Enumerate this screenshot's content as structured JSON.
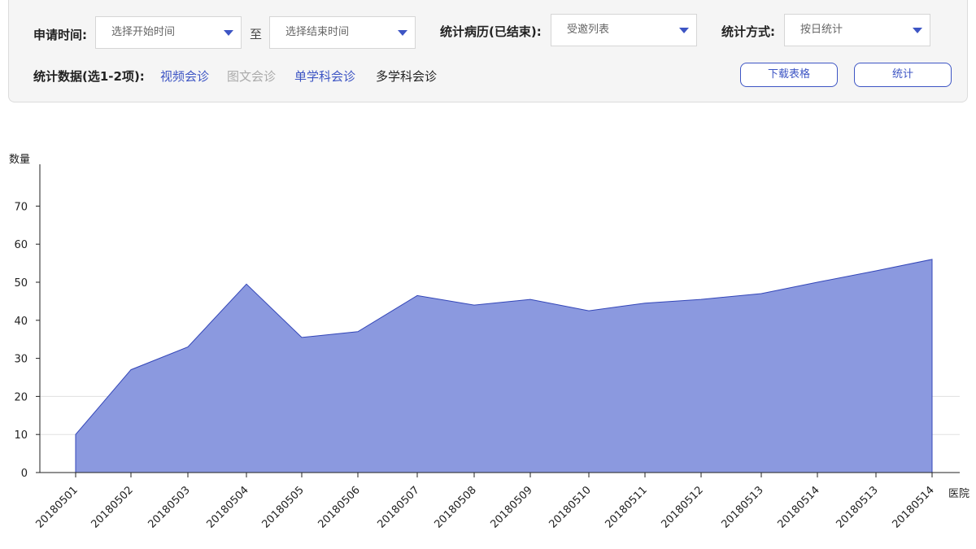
{
  "filters": {
    "apply_time_label": "申请时间:",
    "start_placeholder": "选择开始时间",
    "to_label": "至",
    "end_placeholder": "选择结束时间",
    "records_label": "统计病历(已结束):",
    "records_value": "受邀列表",
    "method_label": "统计方式:",
    "method_value": "按日统计",
    "data_label": "统计数据(选1-2项):",
    "options": [
      {
        "label": "视频会诊",
        "state": "selected"
      },
      {
        "label": "图文会诊",
        "state": "disabled"
      },
      {
        "label": "单学科会诊",
        "state": "selected"
      },
      {
        "label": "多学科会诊",
        "state": "normal"
      }
    ],
    "download_label": "下载表格",
    "stat_label": "统计"
  },
  "colors": {
    "accent": "#3d55c4",
    "area_fill": "#8b99df",
    "area_stroke": "#3346b8",
    "disabled_text": "#aaaaaa"
  },
  "chart_data": {
    "type": "area",
    "ylabel": "数量",
    "xlabel": "医院",
    "ylim": [
      0,
      80
    ],
    "yticks": [
      0,
      10,
      20,
      30,
      40,
      50,
      60,
      70
    ],
    "grid": "horizontal lines at 10 and 20",
    "categories": [
      "20180501",
      "20180502",
      "20180503",
      "20180504",
      "20180505",
      "20180506",
      "20180507",
      "20180508",
      "20180509",
      "20180510",
      "20180511",
      "20180512",
      "20180513",
      "20180514",
      "20180513",
      "20180514"
    ],
    "series": [
      {
        "values": [
          10,
          27,
          33,
          49.5,
          35.5,
          37,
          46.5,
          44,
          45.5,
          42.5,
          44.5,
          45.5,
          47,
          50,
          53,
          56
        ]
      }
    ]
  }
}
